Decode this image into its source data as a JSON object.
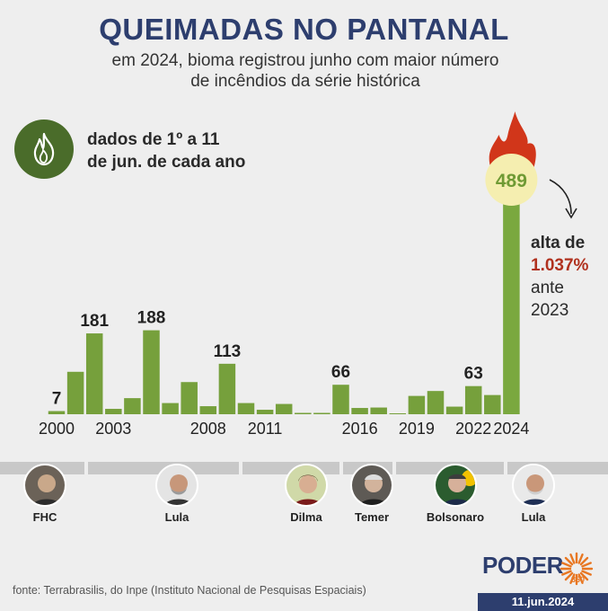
{
  "header": {
    "title": "QUEIMADAS NO PANTANAL",
    "subtitle_line1": "em 2024, bioma registrou junho com maior número",
    "subtitle_line2": "de incêndios da série histórica"
  },
  "note": {
    "line1": "dados de 1º a 11",
    "line2": "de jun. de cada ano",
    "icon": "flame-icon"
  },
  "callout": {
    "line1": "alta de",
    "pct": "1.037%",
    "line3": "ante",
    "line4": "2023"
  },
  "colors": {
    "bar": "#76a03c",
    "bar_2024": "#7aa83f",
    "title": "#2d3e6e",
    "accent_red": "#b0311e",
    "highlight_circle": "#f5eeb0"
  },
  "chart_data": {
    "type": "bar",
    "x": [
      2000,
      2001,
      2002,
      2003,
      2004,
      2005,
      2006,
      2007,
      2008,
      2009,
      2010,
      2011,
      2012,
      2013,
      2014,
      2015,
      2016,
      2017,
      2018,
      2019,
      2020,
      2021,
      2022,
      2023,
      2024
    ],
    "values": [
      7,
      95,
      181,
      12,
      36,
      188,
      25,
      72,
      18,
      113,
      25,
      10,
      23,
      2,
      1,
      66,
      14,
      15,
      0,
      41,
      52,
      17,
      63,
      43,
      489
    ],
    "data_labels": {
      "2000": "7",
      "2002": "181",
      "2005": "188",
      "2009": "113",
      "2015": "66",
      "2022": "63",
      "2024": "489"
    },
    "tick_labels": [
      "2000",
      "2003",
      "2008",
      "2011",
      "2016",
      "2019",
      "2022",
      "2024"
    ],
    "title": "QUEIMADAS NO PANTANAL",
    "ylim": [
      0,
      489
    ]
  },
  "presidents": [
    {
      "name": "FHC"
    },
    {
      "name": "Lula"
    },
    {
      "name": "Dilma"
    },
    {
      "name": "Temer"
    },
    {
      "name": "Bolsonaro"
    },
    {
      "name": "Lula"
    }
  ],
  "footer": {
    "source": "fonte: Terrabrasilis, do Inpe (Instituto Nacional de Pesquisas Espaciais)",
    "logo": "PODER",
    "logo_sub": "360",
    "date": "11.jun.2024"
  }
}
